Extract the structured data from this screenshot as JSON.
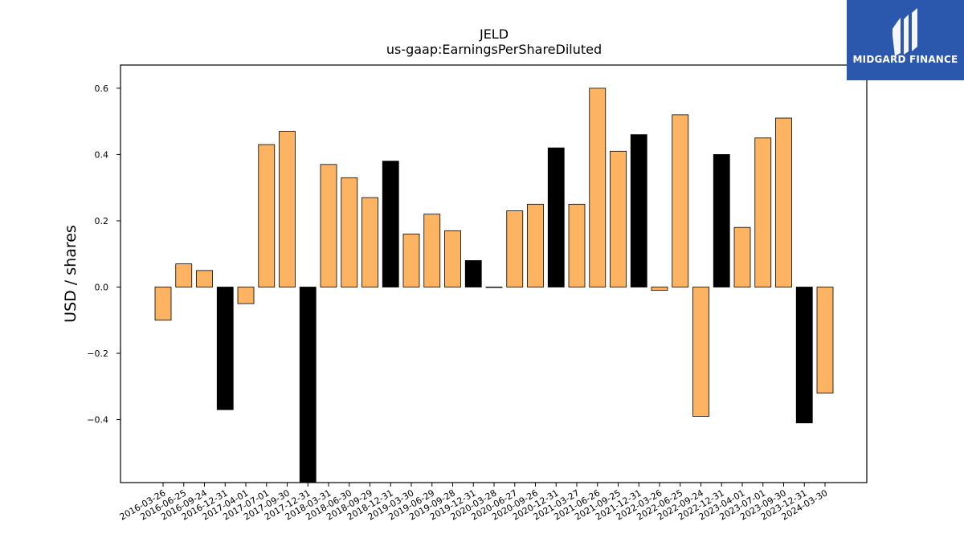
{
  "logo": {
    "text": "MIDGARD FINANCE",
    "bg_color": "#2b57ac"
  },
  "chart_data": {
    "type": "bar",
    "title": "JELD",
    "subtitle": "us-gaap:EarningsPerShareDiluted",
    "xlabel": "",
    "ylabel": "USD / shares",
    "ylim": [
      -0.59,
      0.67
    ],
    "yticks": [
      -0.4,
      -0.2,
      0.0,
      0.2,
      0.4,
      0.6
    ],
    "ytick_labels": [
      "−0.4",
      "−0.2",
      "0.0",
      "0.2",
      "0.4",
      "0.6"
    ],
    "grid": false,
    "colors": {
      "quarter": "#fdb462",
      "annual": "#000000",
      "edge": "#000000"
    },
    "categories": [
      "2016-03-26",
      "2016-06-25",
      "2016-09-24",
      "2016-12-31",
      "2017-04-01",
      "2017-07-01",
      "2017-09-30",
      "2017-12-31",
      "2018-03-31",
      "2018-06-30",
      "2018-09-29",
      "2018-12-31",
      "2019-03-30",
      "2019-06-29",
      "2019-09-28",
      "2019-12-31",
      "2020-03-28",
      "2020-06-27",
      "2020-09-26",
      "2020-12-31",
      "2021-03-27",
      "2021-06-26",
      "2021-09-25",
      "2021-12-31",
      "2022-03-26",
      "2022-06-25",
      "2022-09-24",
      "2022-12-31",
      "2023-04-01",
      "2023-07-01",
      "2023-09-30",
      "2023-12-31",
      "2024-03-30"
    ],
    "values": [
      -0.1,
      0.07,
      0.05,
      -0.37,
      -0.05,
      0.43,
      0.47,
      -0.62,
      0.37,
      0.33,
      0.27,
      0.38,
      0.16,
      0.22,
      0.17,
      0.08,
      0.0,
      0.23,
      0.25,
      0.42,
      0.25,
      0.6,
      0.41,
      0.46,
      -0.01,
      0.52,
      -0.39,
      0.4,
      0.18,
      0.45,
      0.51,
      -0.41,
      -0.32
    ],
    "is_annual": [
      false,
      false,
      false,
      true,
      false,
      false,
      false,
      true,
      false,
      false,
      false,
      true,
      false,
      false,
      false,
      true,
      false,
      false,
      false,
      true,
      false,
      false,
      false,
      true,
      false,
      false,
      false,
      true,
      false,
      false,
      false,
      true,
      false
    ]
  }
}
